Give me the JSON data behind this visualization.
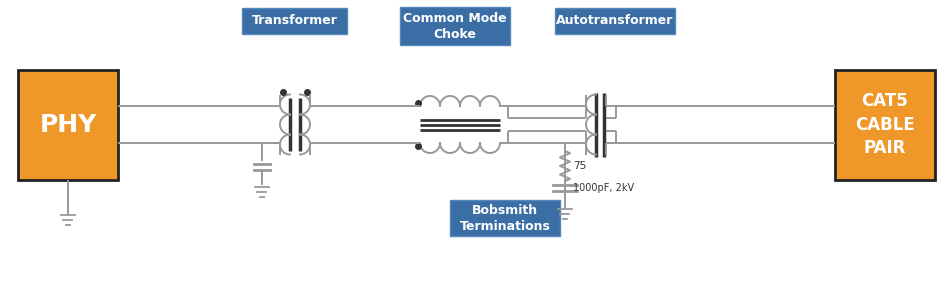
{
  "bg_color": "#ffffff",
  "orange_color": "#F0972A",
  "blue_box_color": "#3A6EA5",
  "line_color": "#999999",
  "dark_color": "#333333",
  "phy_label": "PHY",
  "cat5_label": "CAT5\nCABLE\nPAIR",
  "transformer_label": "Transformer",
  "choke_label": "Common Mode\nChoke",
  "autotransformer_label": "Autotransformer",
  "bobsmith_label": "Bobsmith\nTerminations",
  "resistor_label": "75",
  "cap_label": "1000pF, 2kV",
  "figsize": [
    9.53,
    2.91
  ],
  "dpi": 100
}
